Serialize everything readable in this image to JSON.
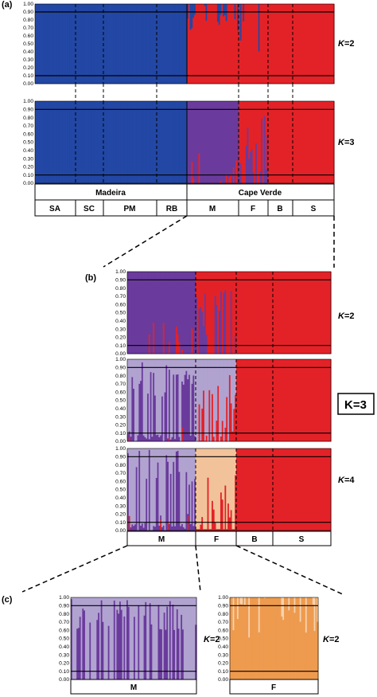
{
  "colors": {
    "blue": "#2347a4",
    "red": "#e32228",
    "purple": "#6a3b9c",
    "lilac": "#b1a3d0",
    "peach": "#f2c39a",
    "orange": "#ee9b4f",
    "pale_orange": "#f6d3b0"
  },
  "panel_labels": {
    "a": "(a)",
    "b": "(b)",
    "c": "(c)"
  },
  "k_labels": {
    "k2": "=2",
    "k3": "=3",
    "k4": "=4",
    "k_letter": "K"
  },
  "highlight_label": "K=3",
  "chart_data": [
    {
      "id": "a-k2",
      "type": "bar",
      "panel": "(a)",
      "k": "K=2",
      "ylim": [
        0,
        1
      ],
      "yticks": [
        "0.00",
        "0.10",
        "0.20",
        "0.30",
        "0.40",
        "0.50",
        "0.60",
        "0.70",
        "0.80",
        "0.90",
        "1.00"
      ],
      "threshold_lines": [
        0.1,
        0.9
      ],
      "groups": [
        {
          "name": "SA",
          "region": "Madeira",
          "share": 0.25,
          "composition": {
            "blue": 1.0
          }
        },
        {
          "name": "SC",
          "region": "Madeira",
          "share": 0.183,
          "composition": {
            "blue": 1.0
          }
        },
        {
          "name": "PM",
          "region": "Madeira",
          "share": 0.335,
          "composition": {
            "blue": 1.0
          }
        },
        {
          "name": "RB",
          "region": "Madeira",
          "share": 0.232,
          "composition": {
            "blue": 1.0
          }
        },
        {
          "name": "M",
          "region": "Cape Verde",
          "share": 0.32,
          "composition": {
            "red": 0.9,
            "blue": 0.1
          }
        },
        {
          "name": "F",
          "region": "Cape Verde",
          "share": 0.2,
          "composition": {
            "red": 0.95,
            "blue": 0.05
          }
        },
        {
          "name": "B",
          "region": "Cape Verde",
          "share": 0.16,
          "composition": {
            "red": 1.0
          }
        },
        {
          "name": "S",
          "region": "Cape Verde",
          "share": 0.32,
          "composition": {
            "red": 1.0
          }
        }
      ]
    },
    {
      "id": "a-k3",
      "type": "bar",
      "panel": "(a)",
      "k": "K=3",
      "ylim": [
        0,
        1
      ],
      "yticks": [
        "0.00",
        "0.10",
        "0.20",
        "0.30",
        "0.40",
        "0.50",
        "0.60",
        "0.70",
        "0.80",
        "0.90",
        "1.00"
      ],
      "threshold_lines": [
        0.1,
        0.9
      ],
      "groups": [
        {
          "name": "SA",
          "composition": {
            "blue": 1.0
          }
        },
        {
          "name": "SC",
          "composition": {
            "blue": 1.0
          }
        },
        {
          "name": "PM",
          "composition": {
            "blue": 1.0
          }
        },
        {
          "name": "RB",
          "composition": {
            "blue": 1.0
          }
        },
        {
          "name": "M",
          "composition": {
            "purple": 0.9,
            "red": 0.1
          }
        },
        {
          "name": "F",
          "composition": {
            "red": 0.8,
            "purple": 0.2
          }
        },
        {
          "name": "B",
          "composition": {
            "red": 1.0
          }
        },
        {
          "name": "S",
          "composition": {
            "red": 1.0
          }
        }
      ]
    },
    {
      "id": "b-k2",
      "type": "bar",
      "panel": "(b)",
      "k": "K=2",
      "ylim": [
        0,
        1
      ],
      "yticks": [
        "0.00",
        "0.10",
        "0.20",
        "0.30",
        "0.40",
        "0.50",
        "0.60",
        "0.70",
        "0.80",
        "0.90",
        "1.00"
      ],
      "threshold_lines": [
        0.1,
        0.9
      ],
      "groups": [
        {
          "name": "M",
          "composition": {
            "purple": 0.85,
            "red": 0.15
          }
        },
        {
          "name": "F",
          "composition": {
            "red": 0.8,
            "purple": 0.2
          }
        },
        {
          "name": "B",
          "composition": {
            "red": 1.0
          }
        },
        {
          "name": "S",
          "composition": {
            "red": 1.0
          }
        }
      ]
    },
    {
      "id": "b-k3",
      "type": "bar",
      "panel": "(b)",
      "k": "K=3",
      "ylim": [
        0,
        1
      ],
      "yticks": [
        "0.00",
        "0.10",
        "0.20",
        "0.30",
        "0.40",
        "0.50",
        "0.60",
        "0.70",
        "0.80",
        "0.90",
        "1.00"
      ],
      "threshold_lines": [
        0.1,
        0.9
      ],
      "groups": [
        {
          "name": "M",
          "composition": {
            "lilac": 0.5,
            "purple": 0.45,
            "red": 0.05
          }
        },
        {
          "name": "F",
          "composition": {
            "lilac": 0.8,
            "red": 0.2
          }
        },
        {
          "name": "B",
          "composition": {
            "red": 1.0
          }
        },
        {
          "name": "S",
          "composition": {
            "red": 1.0
          }
        }
      ]
    },
    {
      "id": "b-k4",
      "type": "bar",
      "panel": "(b)",
      "k": "K=4",
      "ylim": [
        0,
        1
      ],
      "yticks": [
        "0.00",
        "0.10",
        "0.20",
        "0.30",
        "0.40",
        "0.50",
        "0.60",
        "0.70",
        "0.80",
        "0.90",
        "1.00"
      ],
      "threshold_lines": [
        0.1,
        0.9
      ],
      "groups": [
        {
          "name": "M",
          "composition": {
            "lilac": 0.5,
            "purple": 0.45,
            "red": 0.05
          }
        },
        {
          "name": "F",
          "composition": {
            "peach": 0.9,
            "red": 0.1
          }
        },
        {
          "name": "B",
          "composition": {
            "red": 1.0
          }
        },
        {
          "name": "S",
          "composition": {
            "red": 1.0
          }
        }
      ]
    },
    {
      "id": "c-m",
      "type": "bar",
      "panel": "(c)",
      "k": "K=2",
      "ylim": [
        0,
        1
      ],
      "yticks": [
        "0.00",
        "0.10",
        "0.20",
        "0.30",
        "0.40",
        "0.50",
        "0.60",
        "0.70",
        "0.80",
        "0.90",
        "1.00"
      ],
      "threshold_lines": [
        0.1,
        0.9
      ],
      "groups": [
        {
          "name": "M",
          "composition": {
            "lilac": 0.55,
            "purple": 0.45
          }
        }
      ]
    },
    {
      "id": "c-f",
      "type": "bar",
      "panel": "(c)",
      "k": "K=2",
      "ylim": [
        0,
        1
      ],
      "yticks": [
        "0.00",
        "0.10",
        "0.20",
        "0.30",
        "0.40",
        "0.50",
        "0.60",
        "0.70",
        "0.80",
        "0.90",
        "1.00"
      ],
      "threshold_lines": [
        0.1,
        0.9
      ],
      "groups": [
        {
          "name": "F",
          "composition": {
            "orange": 0.85,
            "pale_orange": 0.15
          }
        }
      ]
    }
  ],
  "a_top_row": [
    "Madeira",
    "Cape Verde"
  ],
  "a_bottom_row": [
    "SA",
    "SC",
    "PM",
    "RB",
    "M",
    "F",
    "B",
    "S"
  ],
  "b_bottom_row": [
    "M",
    "F",
    "B",
    "S"
  ],
  "c_m_label": "M",
  "c_f_label": "F"
}
